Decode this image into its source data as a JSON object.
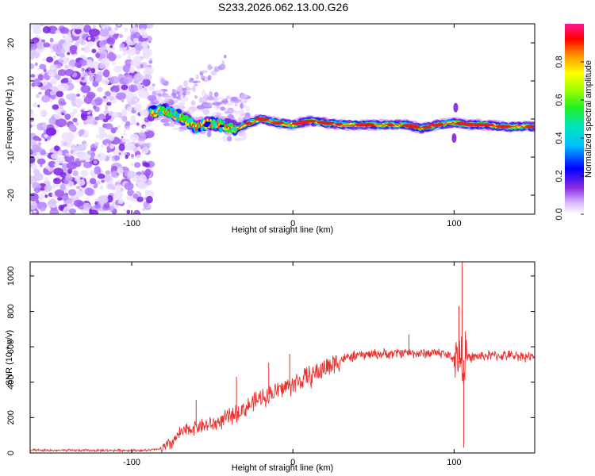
{
  "title": "S233.2026.062.13.00.G26",
  "chart_data": [
    {
      "type": "heatmap",
      "xlabel": "Height of straight line (km)",
      "ylabel": "Frequency (Hz)",
      "xlim": [
        -163,
        150
      ],
      "ylim": [
        -25,
        25
      ],
      "xticks": [
        -100,
        0,
        100
      ],
      "yticks": [
        -20,
        -10,
        0,
        10,
        20
      ],
      "colorbar": {
        "label": "Normalized spectral amplitude",
        "range": [
          0.0,
          1.0
        ],
        "ticks": [
          "0.0",
          "0.2",
          "0.4",
          "0.6",
          "0.8"
        ],
        "tick_values": [
          0.0,
          0.2,
          0.4,
          0.6,
          0.8
        ]
      },
      "noise_region_x": [
        -163,
        -88
      ],
      "ridge": {
        "x": [
          -88,
          -80,
          -70,
          -60,
          -50,
          -40,
          -35,
          -30,
          -20,
          -10,
          0,
          10,
          20,
          30,
          40,
          50,
          60,
          70,
          80,
          90,
          100,
          110,
          120,
          130,
          140,
          148
        ],
        "y": [
          1.5,
          2.5,
          0.5,
          -2,
          -1,
          -2,
          -2.5,
          -1.5,
          0,
          -1,
          -1.5,
          -0.5,
          -1,
          -1.5,
          -1.5,
          -1.5,
          -1.5,
          -1.5,
          -2.5,
          -1.5,
          -1,
          -1.5,
          -1.5,
          -2,
          -2,
          -2
        ]
      }
    },
    {
      "type": "line",
      "xlabel": "Height of straight line (km)",
      "ylabel": "SNR (10 * v/v)",
      "xlim": [
        -163,
        150
      ],
      "ylim": [
        0,
        1080
      ],
      "xticks": [
        -100,
        0,
        100
      ],
      "yticks": [
        0,
        200,
        400,
        600,
        800,
        1000
      ],
      "color": "#e8312f",
      "series": [
        {
          "name": "SNR",
          "x": [
            -163,
            -140,
            -120,
            -100,
            -90,
            -80,
            -75,
            -70,
            -60,
            -50,
            -40,
            -30,
            -20,
            -10,
            0,
            10,
            20,
            30,
            40,
            50,
            60,
            70,
            80,
            90,
            100,
            105,
            110,
            120,
            130,
            140,
            150
          ],
          "y": [
            15,
            15,
            15,
            15,
            15,
            25,
            60,
            110,
            150,
            160,
            200,
            250,
            310,
            350,
            390,
            430,
            480,
            530,
            550,
            560,
            560,
            570,
            560,
            570,
            540,
            520,
            540,
            550,
            550,
            550,
            540
          ]
        }
      ],
      "annotations": [
        {
          "x": -60,
          "y": 300
        },
        {
          "x": -35,
          "y": 430
        },
        {
          "x": -15,
          "y": 510
        },
        {
          "x": -2,
          "y": 560
        },
        {
          "x": 72,
          "y": 670
        },
        {
          "x": 103,
          "y": 830
        },
        {
          "x": 105,
          "y": 1080
        },
        {
          "x": 106,
          "y": 30
        }
      ]
    }
  ]
}
